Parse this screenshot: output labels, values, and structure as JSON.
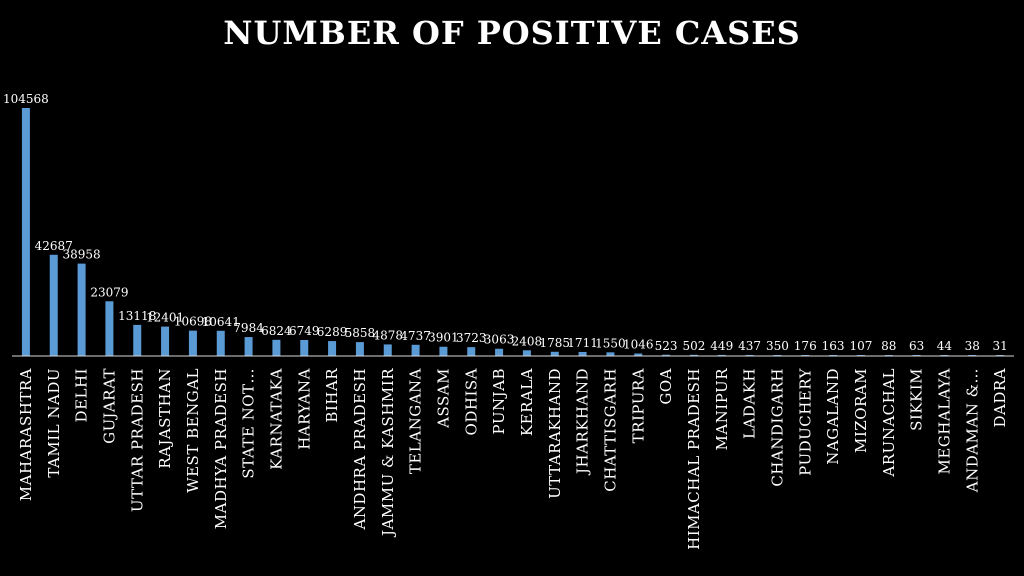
{
  "chart_data": {
    "type": "bar",
    "title": "NUMBER OF POSITIVE CASES",
    "xlabel": "",
    "ylabel": "",
    "ylim": [
      0,
      104568
    ],
    "categories": [
      "MAHARASHTRA",
      "TAMIL NADU",
      "DELHI",
      "GUJARAT",
      "UTTAR PRADESH",
      "RAJASTHAN",
      "WEST BENGAL",
      "MADHYA PRADESH",
      "STATE NOT…",
      "KARNATAKA",
      "HARYANA",
      "BIHAR",
      "ANDHRA PRADESH",
      "JAMMU & KASHMIR",
      "TELANGANA",
      "ASSAM",
      "ODHISA",
      "PUNJAB",
      "KERALA",
      "UTTARAKHAND",
      "JHARKHAND",
      "CHATTISGARH",
      "TRIPURA",
      "GOA",
      "HIMACHAL PRADESH",
      "MANIPUR",
      "LADAKH",
      "CHANDIGARH",
      "PUDUCHERY",
      "NAGALAND",
      "MIZORAM",
      "ARUNACHAL",
      "SIKKIM",
      "MEGHALAYA",
      "ANDAMAN &…",
      "DADRA"
    ],
    "values": [
      104568,
      42687,
      38958,
      23079,
      13118,
      12401,
      10698,
      10641,
      7984,
      6824,
      6749,
      6289,
      5858,
      4878,
      4737,
      3901,
      3723,
      3063,
      2408,
      1785,
      1711,
      1550,
      1046,
      523,
      502,
      449,
      437,
      350,
      176,
      163,
      107,
      88,
      63,
      44,
      38,
      31
    ],
    "bar_color": "#5b9bd5",
    "grid": false,
    "legend": "none"
  }
}
